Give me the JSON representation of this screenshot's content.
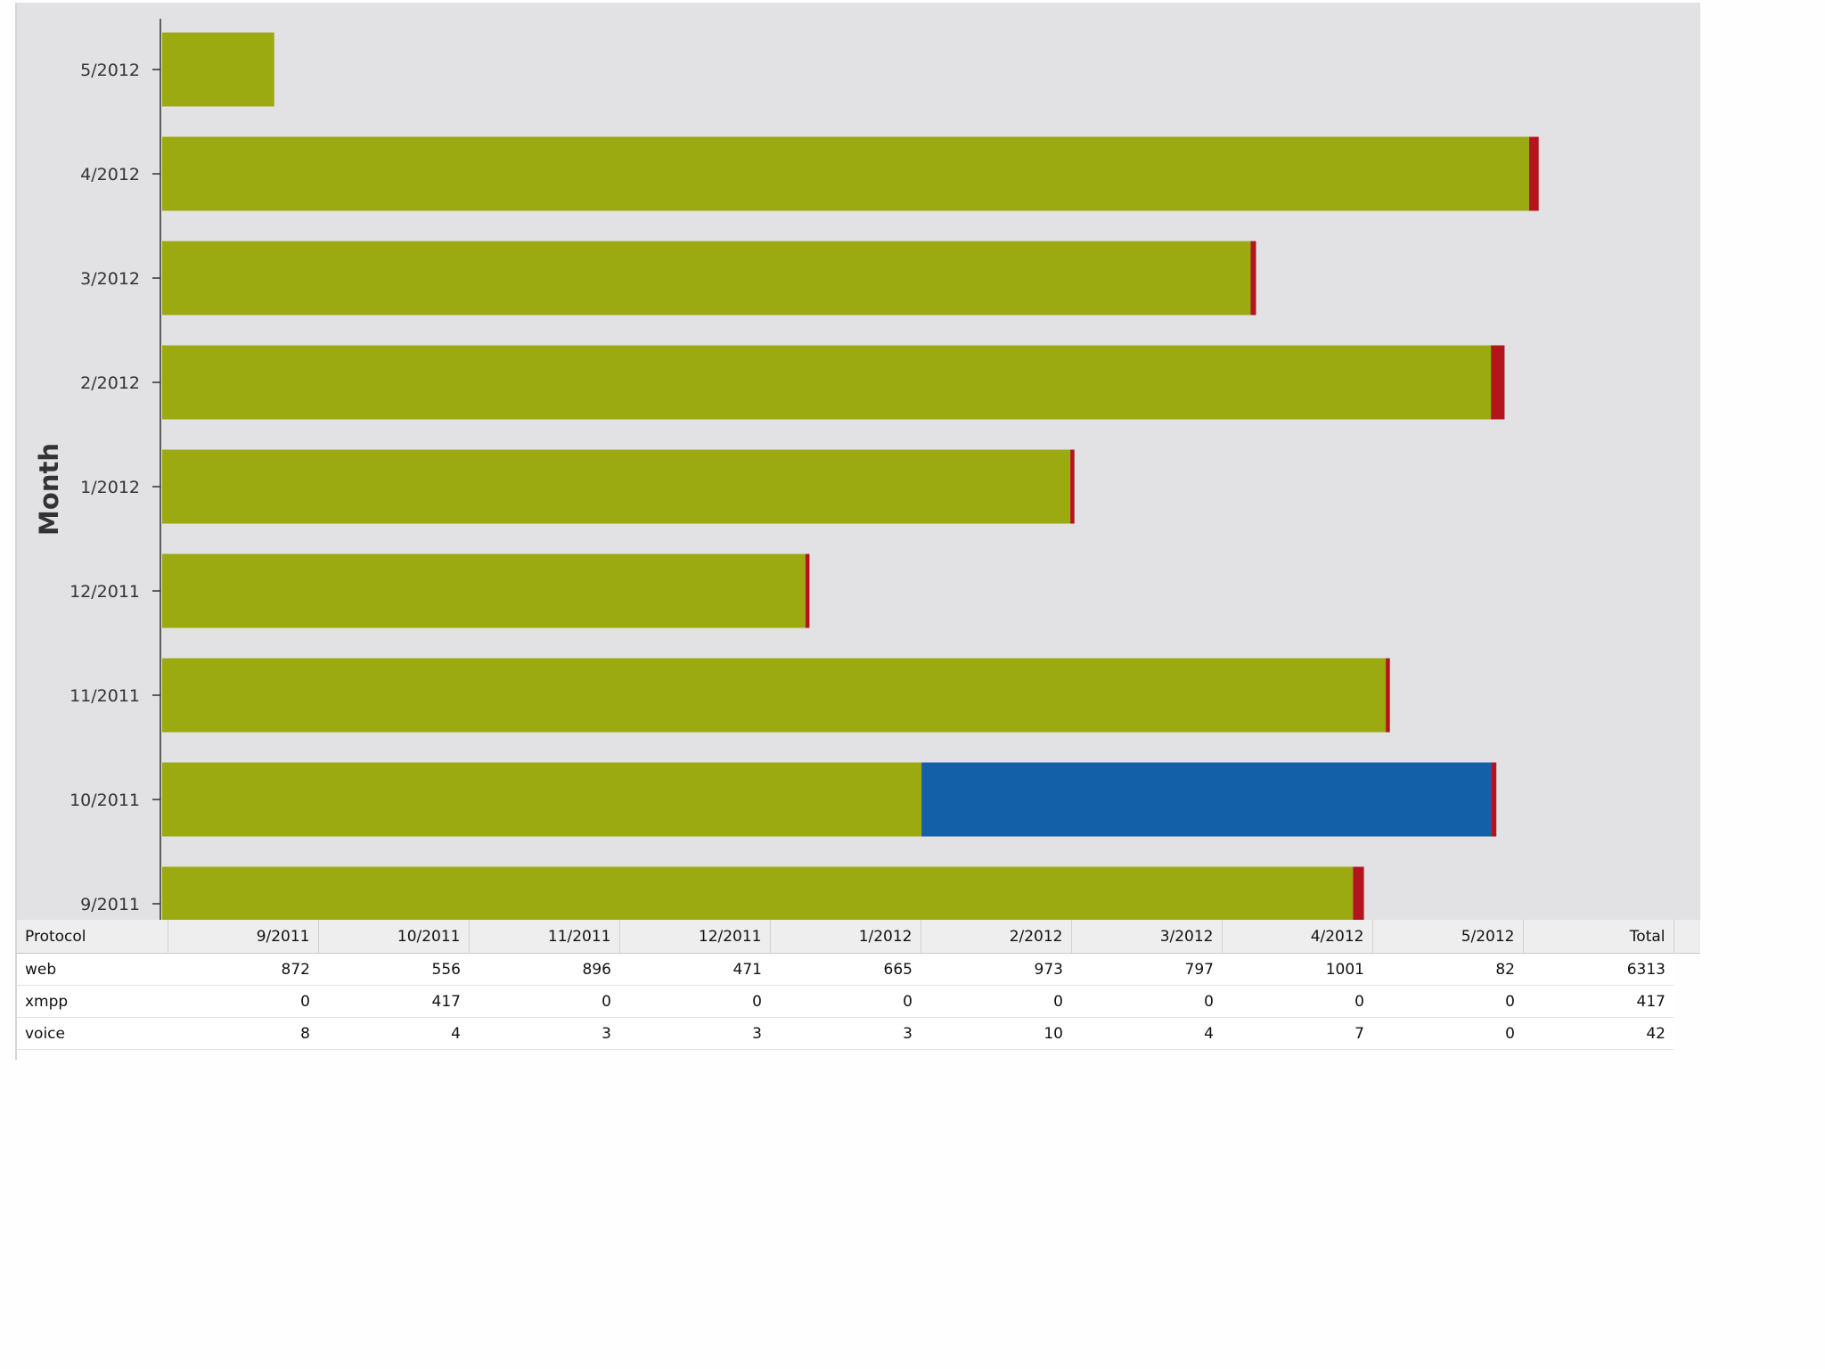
{
  "chart_data": {
    "type": "bar",
    "orientation": "horizontal",
    "stacked": true,
    "ylabel": "Month",
    "categories": [
      "9/2011",
      "10/2011",
      "11/2011",
      "12/2011",
      "1/2012",
      "2/2012",
      "3/2012",
      "4/2012",
      "5/2012"
    ],
    "series": [
      {
        "name": "web",
        "color": "#9aaa10",
        "values": [
          872,
          556,
          896,
          471,
          665,
          973,
          797,
          1001,
          82
        ]
      },
      {
        "name": "xmpp",
        "color": "#135fa8",
        "values": [
          0,
          417,
          0,
          0,
          0,
          0,
          0,
          0,
          0
        ]
      },
      {
        "name": "voice",
        "color": "#b3151e",
        "values": [
          8,
          4,
          3,
          3,
          3,
          10,
          4,
          7,
          0
        ]
      }
    ],
    "xlim": [
      0,
      1050
    ],
    "grid": false,
    "legend": "none"
  },
  "table": {
    "headers": [
      "Protocol",
      "9/2011",
      "10/2011",
      "11/2011",
      "12/2011",
      "1/2012",
      "2/2012",
      "3/2012",
      "4/2012",
      "5/2012",
      "Total"
    ],
    "rows": [
      {
        "cells": [
          "web",
          "872",
          "556",
          "896",
          "471",
          "665",
          "973",
          "797",
          "1001",
          "82",
          "6313"
        ]
      },
      {
        "cells": [
          "xmpp",
          "0",
          "417",
          "0",
          "0",
          "0",
          "0",
          "0",
          "0",
          "0",
          "417"
        ]
      },
      {
        "cells": [
          "voice",
          "8",
          "4",
          "3",
          "3",
          "3",
          "10",
          "4",
          "7",
          "0",
          "42"
        ]
      }
    ]
  }
}
